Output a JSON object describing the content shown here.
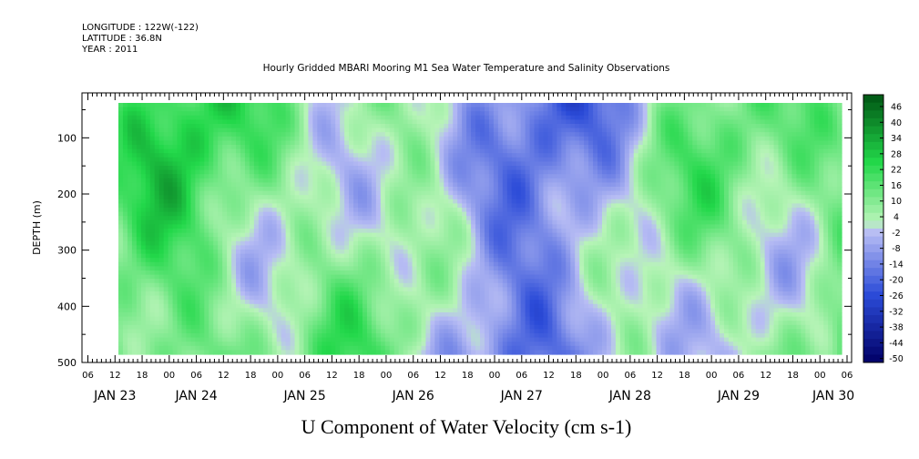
{
  "header": {
    "longitude": "LONGITUDE : 122W(-122)",
    "latitude": "LATITUDE : 36.8N",
    "year": "YEAR : 2011"
  },
  "chart_data": {
    "type": "heatmap",
    "title": "Hourly Gridded MBARI Mooring M1 Sea Water Temperature and Salinity Observations",
    "subtitle": "U Component of Water Velocity (cm s-1)",
    "ylabel": "DEPTH (m)",
    "y_ticks": [
      "100",
      "200",
      "300",
      "400",
      "500"
    ],
    "y_tick_values": [
      100,
      200,
      300,
      400,
      500
    ],
    "ylim": [
      500,
      20
    ],
    "hour_ticks": [
      "06",
      "12",
      "18",
      "00",
      "06",
      "12",
      "18",
      "00",
      "06",
      "12",
      "18",
      "00",
      "06",
      "12",
      "18",
      "00",
      "06",
      "12",
      "18",
      "00",
      "06",
      "12",
      "18",
      "00",
      "06",
      "12",
      "18",
      "00",
      "06"
    ],
    "day_labels": [
      "JAN 23",
      "JAN 24",
      "JAN 25",
      "JAN 26",
      "JAN 27",
      "JAN 28",
      "JAN 29",
      "JAN 30"
    ],
    "colorbar": {
      "labels": [
        "46",
        "40",
        "34",
        "28",
        "22",
        "16",
        "10",
        "4",
        "-2",
        "-8",
        "-14",
        "-20",
        "-26",
        "-32",
        "-38",
        "-44",
        "-50"
      ],
      "min": -50,
      "max": 49,
      "colors": {
        "deep_negative": "#000066",
        "mid_negative": "#2b4bd8",
        "light_negative": "#b8bdf4",
        "light_positive": "#b8f4b8",
        "mid_positive": "#22d84a",
        "deep_positive": "#005514"
      }
    },
    "grid": false
  }
}
